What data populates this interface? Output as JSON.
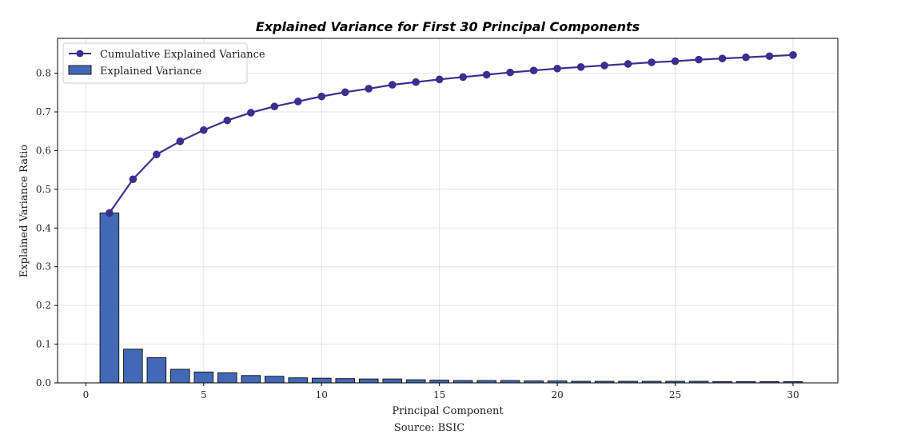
{
  "chart_data": {
    "type": "bar",
    "title": "Explained Variance for First 30 Principal Components",
    "xlabel": "Principal Component",
    "ylabel": "Explained Variance Ratio",
    "source": "Source: BSIC",
    "xlim": [
      -1.2,
      31.9
    ],
    "ylim": [
      0,
      0.89
    ],
    "x_ticks": [
      0,
      5,
      10,
      15,
      20,
      25,
      30
    ],
    "y_ticks": [
      0.0,
      0.1,
      0.2,
      0.3,
      0.4,
      0.5,
      0.6,
      0.7,
      0.8
    ],
    "x_tick_labels": [
      "0",
      "5",
      "10",
      "15",
      "20",
      "25",
      "30"
    ],
    "y_tick_labels": [
      "0.0",
      "0.1",
      "0.2",
      "0.3",
      "0.4",
      "0.5",
      "0.6",
      "0.7",
      "0.8"
    ],
    "grid": true,
    "legend_position": "top-left",
    "x": [
      1,
      2,
      3,
      4,
      5,
      6,
      7,
      8,
      9,
      10,
      11,
      12,
      13,
      14,
      15,
      16,
      17,
      18,
      19,
      20,
      21,
      22,
      23,
      24,
      25,
      26,
      27,
      28,
      29,
      30
    ],
    "series": [
      {
        "name": "Cumulative Explained Variance",
        "type": "line",
        "color": "#3a2f8f",
        "values": [
          0.439,
          0.526,
          0.59,
          0.624,
          0.653,
          0.678,
          0.698,
          0.714,
          0.727,
          0.74,
          0.751,
          0.76,
          0.77,
          0.777,
          0.784,
          0.79,
          0.796,
          0.802,
          0.807,
          0.812,
          0.816,
          0.82,
          0.824,
          0.828,
          0.831,
          0.835,
          0.838,
          0.841,
          0.844,
          0.847
        ]
      },
      {
        "name": "Explained Variance",
        "type": "bar",
        "color": "#4169b8",
        "values": [
          0.439,
          0.087,
          0.065,
          0.035,
          0.028,
          0.026,
          0.019,
          0.017,
          0.013,
          0.012,
          0.011,
          0.01,
          0.01,
          0.008,
          0.007,
          0.006,
          0.006,
          0.006,
          0.005,
          0.005,
          0.004,
          0.004,
          0.004,
          0.004,
          0.004,
          0.004,
          0.003,
          0.003,
          0.003,
          0.003
        ]
      }
    ]
  }
}
